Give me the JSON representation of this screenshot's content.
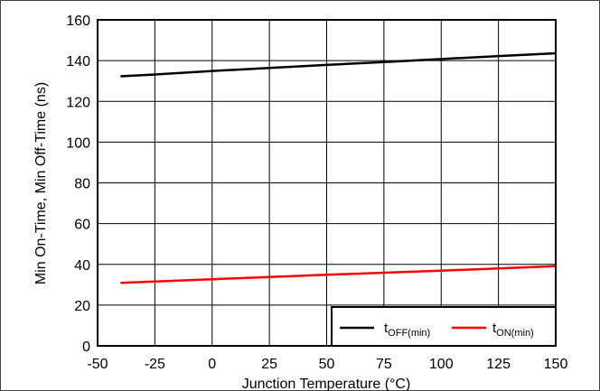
{
  "chart_data": {
    "type": "line",
    "xlabel": "Junction Temperature (°C)",
    "ylabel": "Min On-Time, Min Off-Time (ns)",
    "xlim": [
      -50,
      150
    ],
    "ylim": [
      0,
      160
    ],
    "xticks": [
      -50,
      -25,
      0,
      25,
      50,
      75,
      100,
      125,
      150
    ],
    "yticks": [
      0,
      20,
      40,
      60,
      80,
      100,
      120,
      140,
      160
    ],
    "xtick_labels": [
      "-50",
      "-25",
      "0",
      "25",
      "50",
      "75",
      "100",
      "125",
      "150"
    ],
    "ytick_labels": [
      "0",
      "20",
      "40",
      "60",
      "80",
      "100",
      "120",
      "140",
      "160"
    ],
    "grid": true,
    "legend_position": "bottom-right",
    "series": [
      {
        "name": "tOFF(min)",
        "legend_main": "t",
        "legend_sub": "OFF(min)",
        "color": "#000000",
        "x": [
          -40,
          -25,
          0,
          25,
          50,
          75,
          100,
          125,
          150
        ],
        "y": [
          132.3,
          133.2,
          134.9,
          136.4,
          137.9,
          139.3,
          140.8,
          142.2,
          143.6
        ]
      },
      {
        "name": "tON(min)",
        "legend_main": "t",
        "legend_sub": "ON(min)",
        "color": "#ff0000",
        "x": [
          -40,
          -25,
          0,
          25,
          50,
          75,
          100,
          125,
          150
        ],
        "y": [
          30.9,
          31.6,
          32.7,
          33.8,
          34.9,
          35.9,
          36.9,
          38.0,
          39.1
        ]
      }
    ]
  }
}
